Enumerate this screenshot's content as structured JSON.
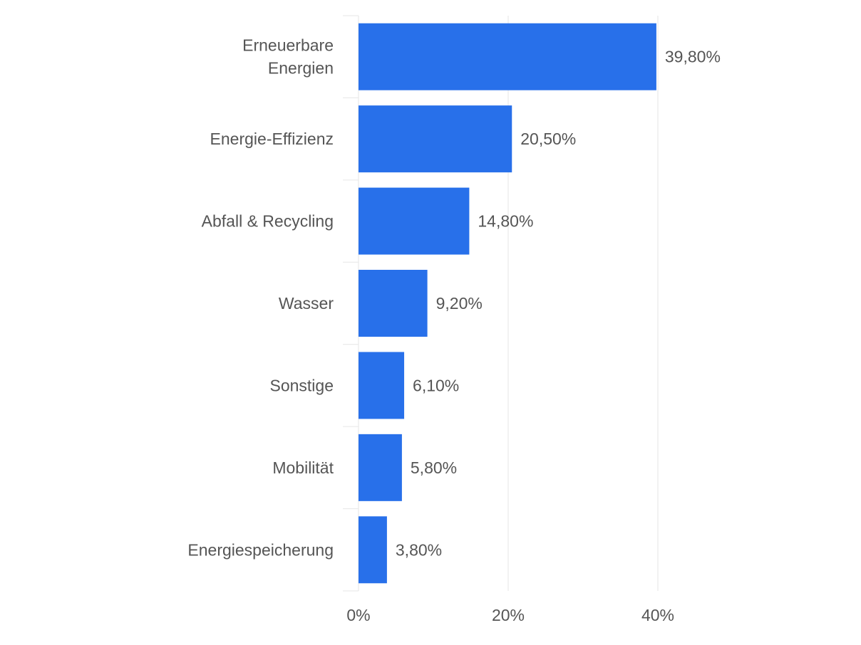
{
  "chart_data": {
    "type": "bar",
    "orientation": "horizontal",
    "categories": [
      [
        "Erneuerbare",
        "Energien"
      ],
      [
        "Energie-Effizienz"
      ],
      [
        "Abfall & Recycling"
      ],
      [
        "Wasser"
      ],
      [
        "Sonstige"
      ],
      [
        "Mobilität"
      ],
      [
        "Energiespeicherung"
      ]
    ],
    "values": [
      39.8,
      20.5,
      14.8,
      9.2,
      6.1,
      5.8,
      3.8
    ],
    "value_labels": [
      "39,80%",
      "20,50%",
      "14,80%",
      "9,20%",
      "6,10%",
      "5,80%",
      "3,80%"
    ],
    "x_ticks": [
      0,
      20,
      40
    ],
    "x_tick_labels": [
      "0%",
      "20%",
      "40%"
    ],
    "xlim": [
      0,
      40
    ],
    "grid": true,
    "legend": "none",
    "colors": {
      "bar": "#2870ea",
      "grid": "#e6e6e6",
      "text": "#555555"
    }
  }
}
